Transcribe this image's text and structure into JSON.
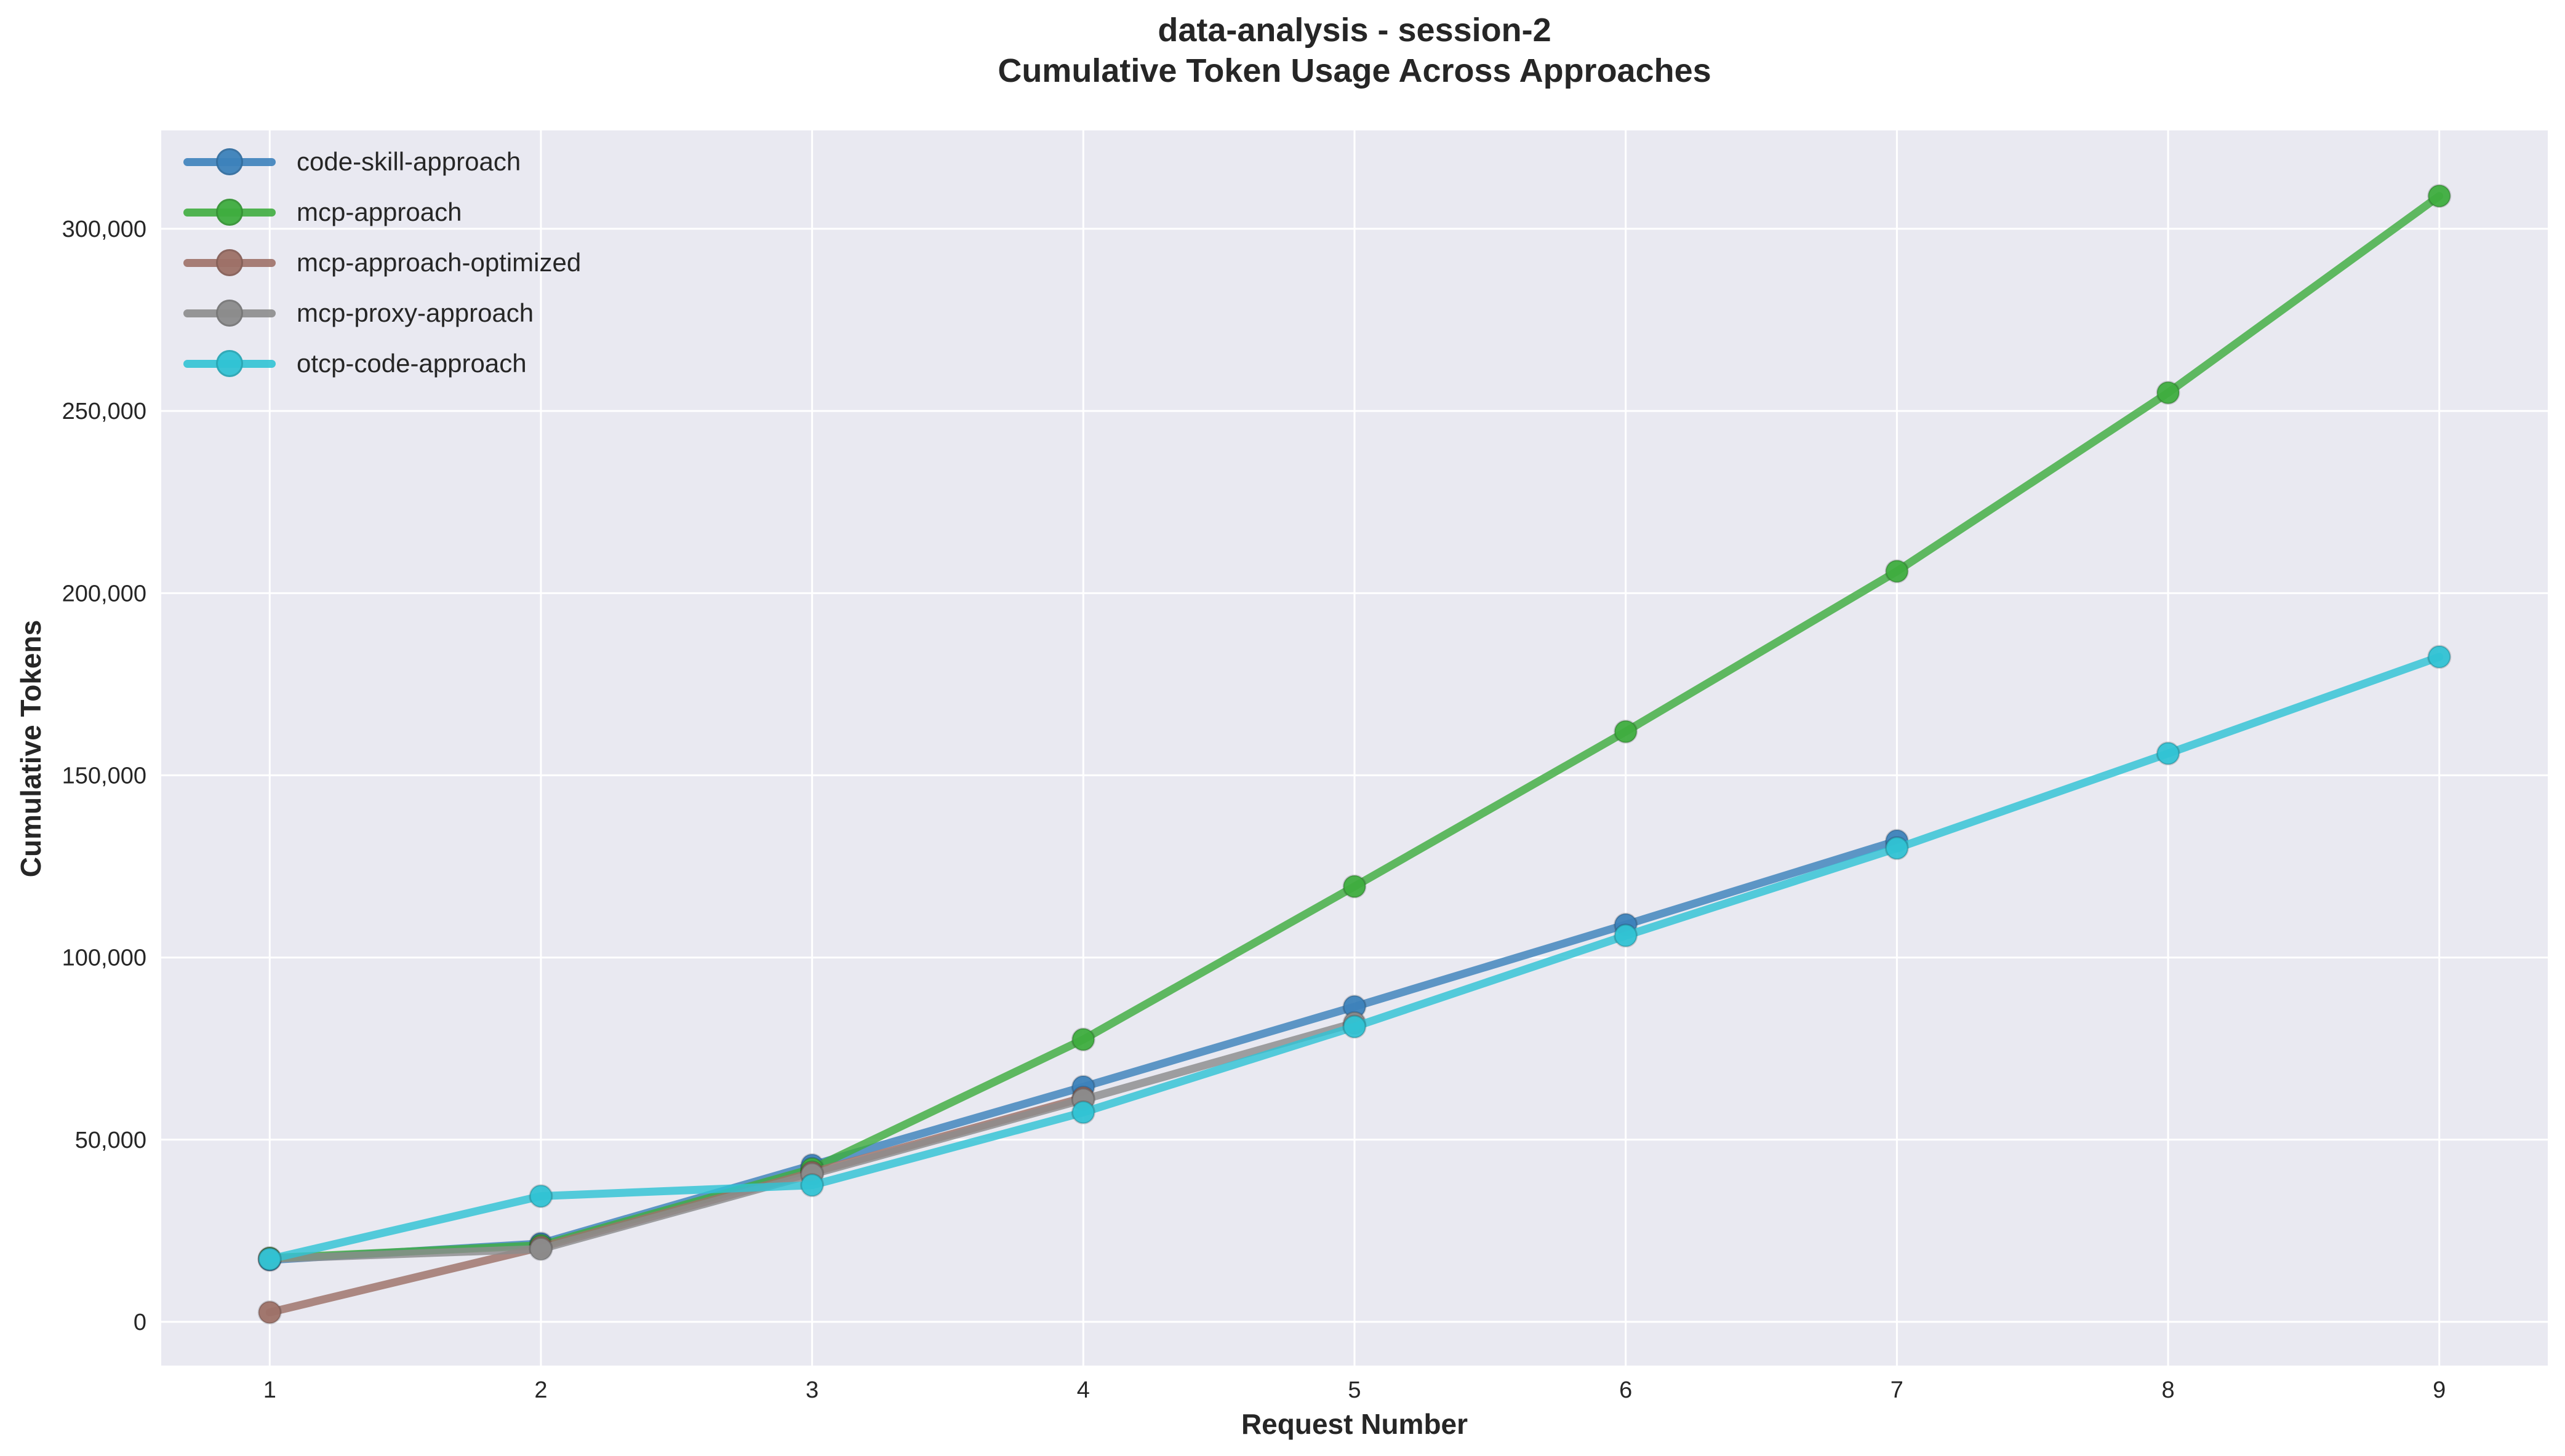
{
  "figure": {
    "title_line1": "data-analysis - session-2",
    "title_line2": "Cumulative Token Usage Across Approaches"
  },
  "chart_data": {
    "type": "line",
    "title": "data-analysis - session-2",
    "subtitle": "Cumulative Token Usage Across Approaches",
    "xlabel": "Request Number",
    "ylabel": "Cumulative Tokens",
    "x_ticks": [
      1,
      2,
      3,
      4,
      5,
      6,
      7,
      8,
      9
    ],
    "y_ticks": [
      0,
      50000,
      100000,
      150000,
      200000,
      250000,
      300000
    ],
    "y_tick_labels": [
      "0",
      "50,000",
      "100,000",
      "150,000",
      "200,000",
      "250,000",
      "300,000"
    ],
    "xlim": [
      0.6,
      9.4
    ],
    "ylim": [
      -12000,
      327000
    ],
    "grid": true,
    "legend_position": "upper left",
    "plot_bg": "#e9e9f1",
    "grid_color": "#ffffff",
    "text_color": "#262626",
    "series": [
      {
        "name": "code-skill-approach",
        "color": "#3d82bb",
        "x": [
          1,
          2,
          3,
          4,
          5,
          6,
          7
        ],
        "values": [
          17000,
          21500,
          43000,
          64500,
          86500,
          109000,
          132000
        ]
      },
      {
        "name": "mcp-approach",
        "color": "#3fad3f",
        "x": [
          1,
          2,
          3,
          4,
          5,
          6,
          7,
          8,
          9
        ],
        "values": [
          17500,
          21000,
          42000,
          77500,
          119500,
          162000,
          206000,
          255000,
          309000
        ]
      },
      {
        "name": "mcp-approach-optimized",
        "color": "#9e7168",
        "x": [
          1,
          2,
          3,
          4
        ],
        "values": [
          2600,
          20500,
          41000,
          61500
        ]
      },
      {
        "name": "mcp-proxy-approach",
        "color": "#8c8c8c",
        "x": [
          1,
          2,
          3,
          4,
          5
        ],
        "values": [
          17300,
          20000,
          40500,
          61000,
          82000
        ]
      },
      {
        "name": "otcp-code-approach",
        "color": "#31c3d4",
        "x": [
          1,
          2,
          3,
          4,
          5,
          6,
          7,
          8,
          9
        ],
        "values": [
          17200,
          34500,
          37500,
          57500,
          81000,
          106000,
          130000,
          156000,
          182500
        ]
      }
    ]
  }
}
